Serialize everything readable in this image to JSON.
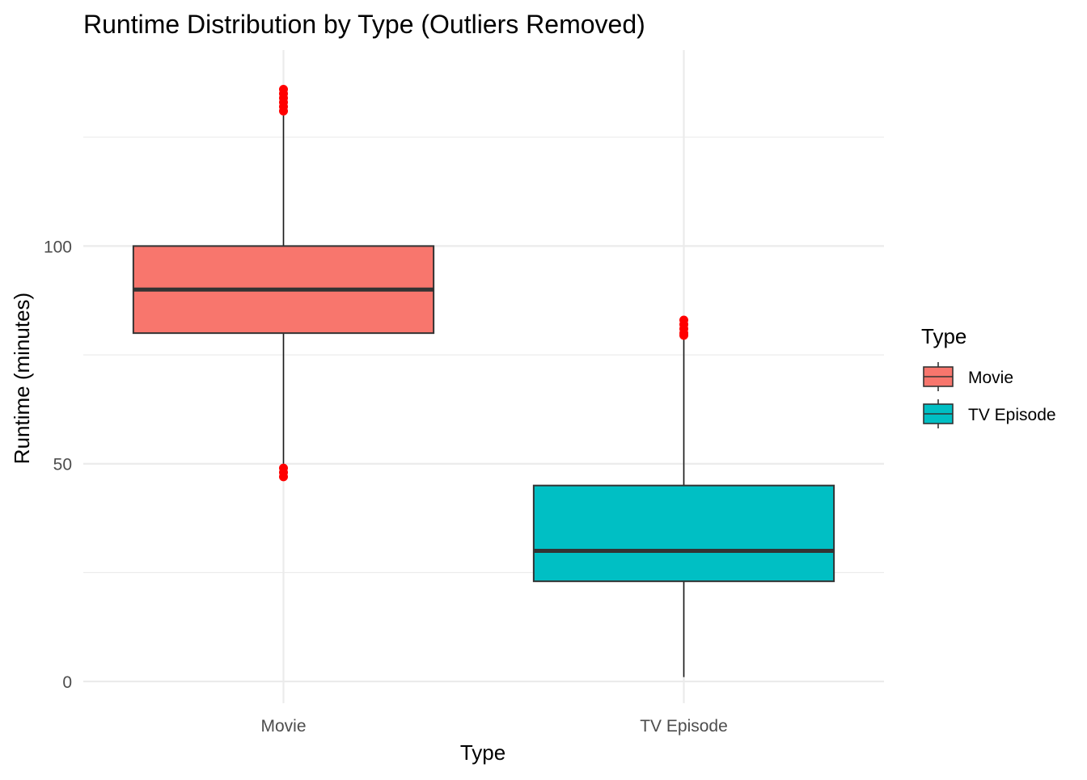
{
  "chart_data": {
    "type": "boxplot",
    "title": "Runtime Distribution by Type (Outliers Removed)",
    "xlabel": "Type",
    "ylabel": "Runtime (minutes)",
    "ylim": [
      -5,
      145
    ],
    "yticks": [
      0,
      50,
      100
    ],
    "yticklabels": [
      "0",
      "50",
      "100"
    ],
    "grid": true,
    "categories": [
      "Movie",
      "TV Episode"
    ],
    "legend": {
      "title": "Type",
      "placement": "right",
      "entries": [
        "Movie",
        "TV Episode"
      ]
    },
    "outlier_color": "#FF0000",
    "series": [
      {
        "category": "Movie",
        "color": "#F8766D",
        "whisker_low": 50,
        "q1": 80,
        "median": 90,
        "q3": 100,
        "whisker_high": 130,
        "outliers": [
          47,
          48,
          49,
          131,
          132,
          133,
          134,
          135,
          136
        ]
      },
      {
        "category": "TV Episode",
        "color": "#00BFC4",
        "whisker_low": 1,
        "q1": 23,
        "median": 30,
        "q3": 45,
        "whisker_high": 79,
        "outliers": [
          79.5,
          80,
          81,
          82,
          83
        ]
      }
    ]
  }
}
